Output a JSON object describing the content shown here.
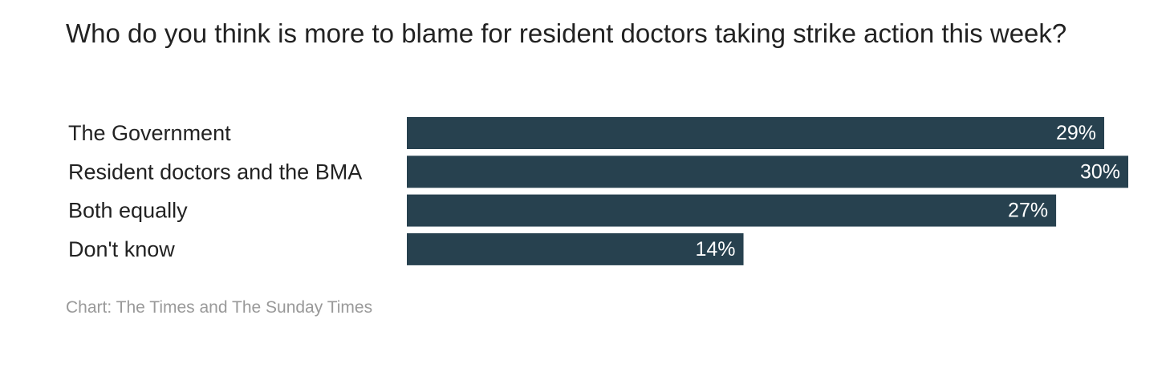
{
  "chart_data": {
    "type": "bar",
    "orientation": "horizontal",
    "title": "Who do you think is more to blame for resident doctors taking strike action this week?",
    "categories": [
      "The Government",
      "Resident doctors and the BMA",
      "Both equally",
      "Don't know"
    ],
    "values": [
      29,
      30,
      27,
      14
    ],
    "value_labels": [
      "29%",
      "30%",
      "27%",
      "14%"
    ],
    "unit": "%",
    "xlim": [
      0,
      30
    ],
    "grid": false,
    "legend": "none",
    "source": "Chart: The Times and The Sunday Times"
  },
  "colors": {
    "bar": "#27414f",
    "title": "#222222",
    "source": "#999999"
  }
}
